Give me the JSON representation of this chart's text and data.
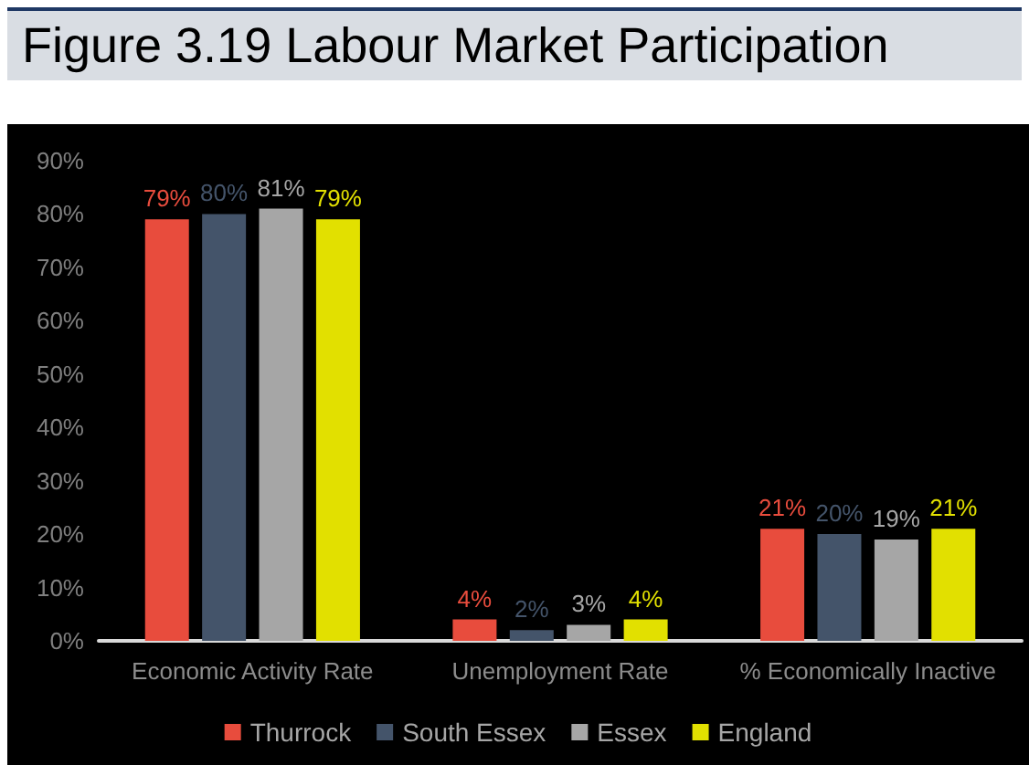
{
  "chart_data": {
    "type": "bar",
    "title": "Figure 3.19 Labour Market Participation",
    "categories": [
      "Economic Activity Rate",
      "Unemployment Rate",
      "% Economically Inactive"
    ],
    "series": [
      {
        "name": "Thurrock",
        "color": "#e84c3d",
        "values": [
          79,
          4,
          21
        ],
        "value_labels": [
          "79%",
          "4%",
          "21%"
        ]
      },
      {
        "name": "South Essex",
        "color": "#44546a",
        "values": [
          80,
          2,
          20
        ],
        "value_labels": [
          "80%",
          "2%",
          "20%"
        ]
      },
      {
        "name": "Essex",
        "color": "#a6a6a6",
        "values": [
          81,
          3,
          19
        ],
        "value_labels": [
          "81%",
          "3%",
          "19%"
        ]
      },
      {
        "name": "England",
        "color": "#e2e000",
        "values": [
          79,
          4,
          21
        ],
        "value_labels": [
          "79%",
          "4%",
          "21%"
        ]
      }
    ],
    "ylim": [
      0,
      90
    ],
    "yticks": [
      {
        "value": 0,
        "label": "0%"
      },
      {
        "value": 10,
        "label": "10%"
      },
      {
        "value": 20,
        "label": "20%"
      },
      {
        "value": 30,
        "label": "30%"
      },
      {
        "value": 40,
        "label": "40%"
      },
      {
        "value": 50,
        "label": "50%"
      },
      {
        "value": 60,
        "label": "60%"
      },
      {
        "value": 70,
        "label": "70%"
      },
      {
        "value": 80,
        "label": "80%"
      },
      {
        "value": 90,
        "label": "90%"
      }
    ],
    "grid": false,
    "legend": "bottom"
  }
}
